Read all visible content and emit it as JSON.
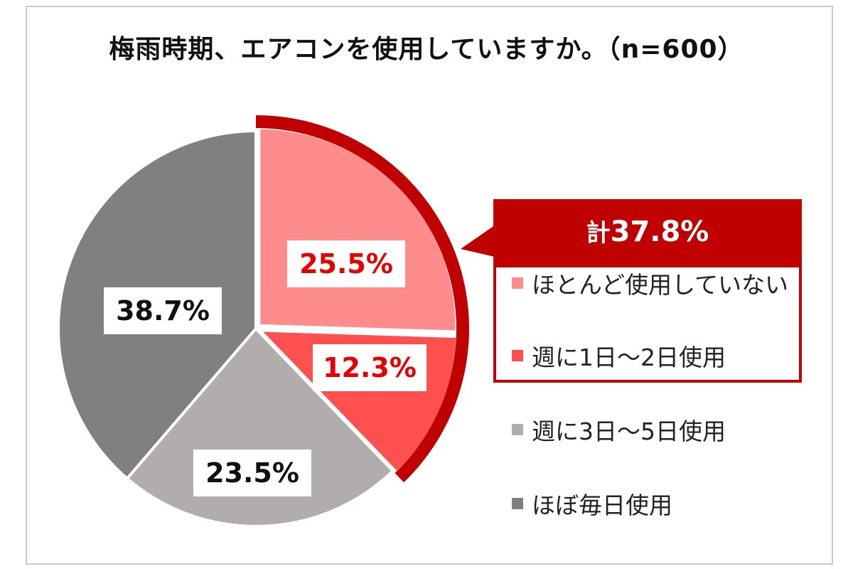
{
  "title": "梅雨時期、エアコンを使用していますか。（n=600）",
  "chart_data": {
    "type": "pie",
    "categories": [
      "ほとんど使用していない",
      "週に1日～2日使用",
      "週に3日～5日使用",
      "ほぼ毎日使用"
    ],
    "values": [
      25.5,
      12.3,
      23.5,
      38.7
    ],
    "labels": [
      "25.5%",
      "12.3%",
      "23.5%",
      "38.7%"
    ],
    "colors": [
      "#ff8c8c",
      "#ff5050",
      "#b0adac",
      "#808080"
    ],
    "label_colors": [
      "#e60000",
      "#e60000",
      "#111111",
      "#111111"
    ],
    "highlight": {
      "label_prefix": "計",
      "label_value": "37.8%",
      "color": "#c00000",
      "series": [
        "ほとんど使用していない",
        "週に1日～2日使用"
      ]
    },
    "legend_position": "right"
  }
}
